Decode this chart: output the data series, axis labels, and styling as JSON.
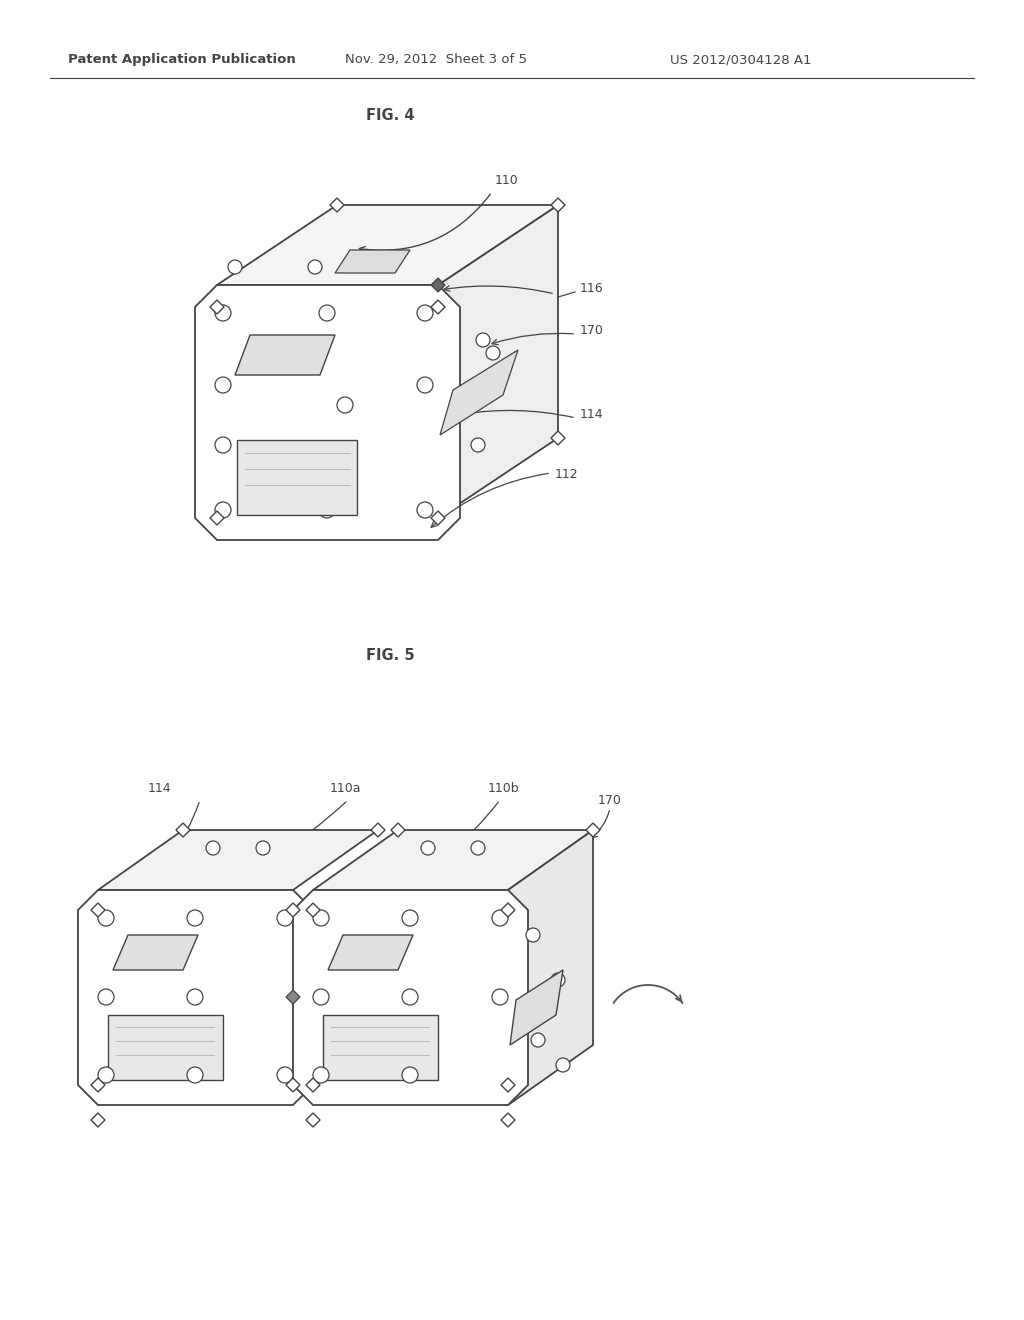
{
  "bg_color": "#ffffff",
  "header_text": "Patent Application Publication",
  "header_date": "Nov. 29, 2012  Sheet 3 of 5",
  "header_patent": "US 2012/0304128 A1",
  "fig4_label": "FIG. 4",
  "fig5_label": "FIG. 5",
  "line_color": "#444444",
  "font_size_header": 9.5,
  "font_size_fig": 10.5,
  "font_size_label": 9
}
